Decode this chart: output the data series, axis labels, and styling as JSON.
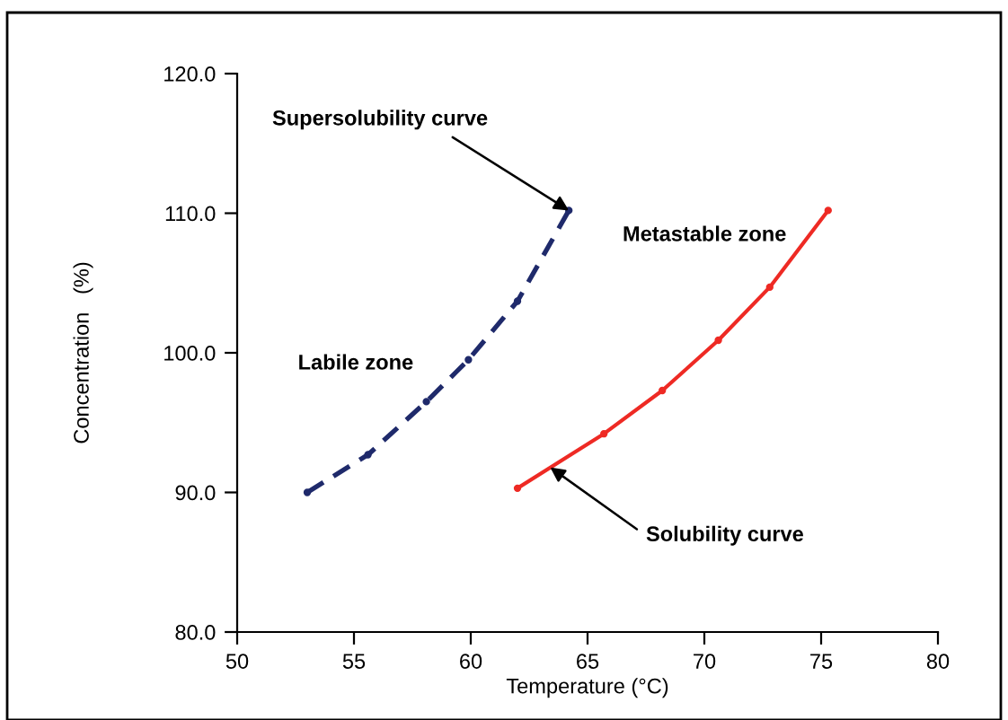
{
  "chart_data": {
    "type": "line",
    "xlabel": "Temperature (°C)",
    "ylabel": "Concentration   (%)",
    "xlim": [
      50,
      80
    ],
    "xticks": [
      50,
      55,
      60,
      65,
      70,
      75,
      80
    ],
    "ylim": [
      80,
      120
    ],
    "yticks": [
      {
        "value": 80,
        "label": "80.0"
      },
      {
        "value": 90,
        "label": "90.0"
      },
      {
        "value": 100,
        "label": "100.0"
      },
      {
        "value": 110,
        "label": "110.0"
      },
      {
        "value": 120,
        "label": "120.0"
      }
    ],
    "grid": false,
    "marker": "circle",
    "series": [
      {
        "color": "#1f2a6b",
        "line_style": "dashed",
        "x": [
          53.0,
          55.6,
          58.1,
          59.9,
          62.0,
          64.2
        ],
        "values": [
          90.0,
          92.7,
          96.5,
          99.5,
          103.7,
          110.2
        ]
      },
      {
        "color": "#ee2a24",
        "line_style": "solid",
        "x": [
          62.0,
          65.7,
          68.2,
          70.6,
          72.8,
          75.3
        ],
        "values": [
          90.3,
          94.2,
          97.3,
          100.9,
          104.7,
          110.2
        ]
      }
    ],
    "annotations": [
      {
        "text": "Supersolubility curve",
        "x": 64.2,
        "y": 110.2
      },
      "Labile zone",
      "Metastable zone",
      {
        "text": "Solubility curve",
        "x": 63.4,
        "y": 91.8
      }
    ]
  }
}
